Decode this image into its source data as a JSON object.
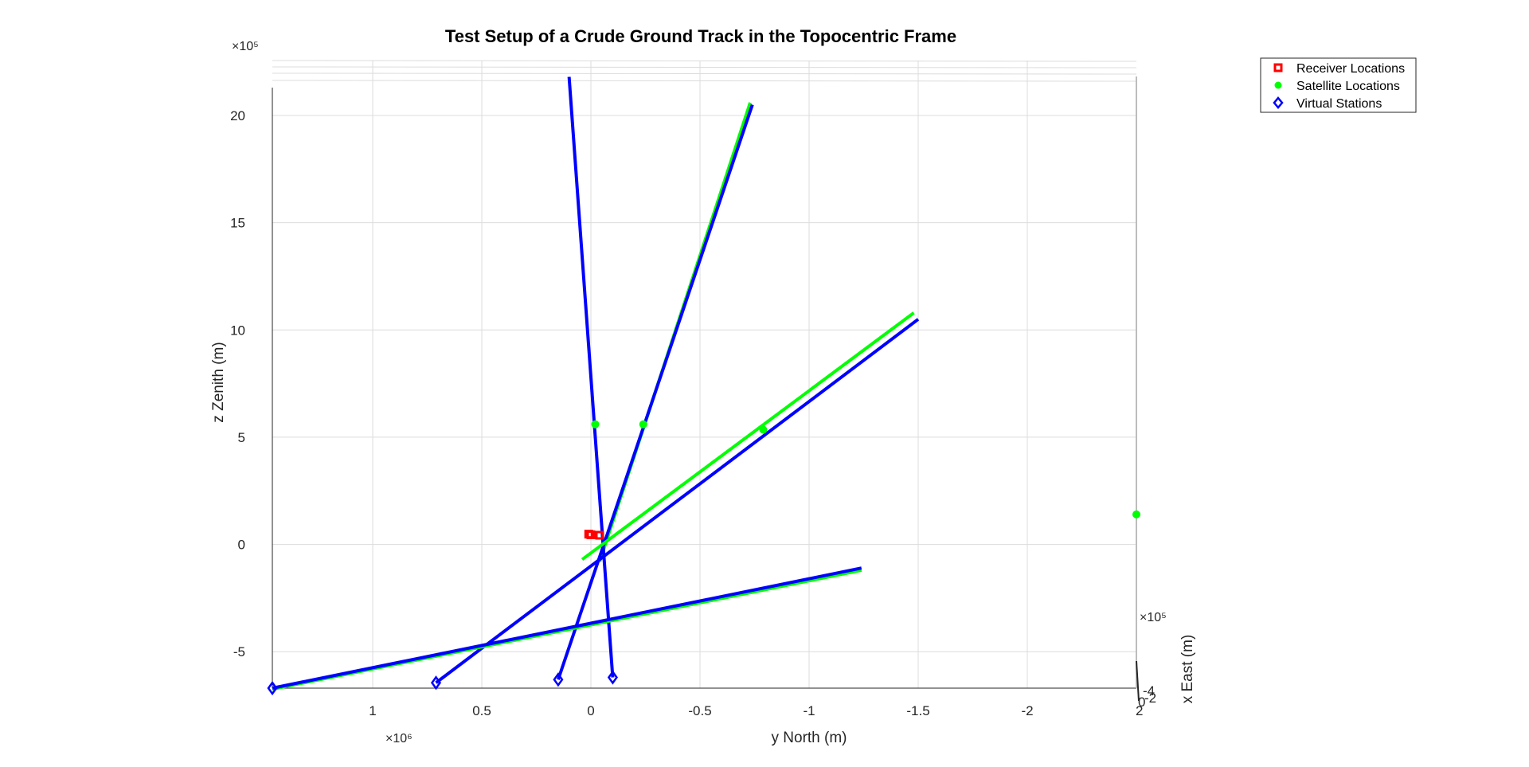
{
  "chart_data": {
    "type": "line",
    "title": "Test Setup of a Crude Ground Track in the Topocentric Frame",
    "xlabel": "x East (m)",
    "ylabel": "y North (m)",
    "zlabel": "z Zenith (m)",
    "view": "3d",
    "grid": true,
    "legend_position": "top-right",
    "x_exponent": "×10⁵",
    "y_exponent": "×10⁶",
    "z_exponent": "×10⁵",
    "x_ticks": [
      "-4",
      "-2",
      "0",
      "2"
    ],
    "y_ticks": [
      {
        "label": "1",
        "value": 1.0
      },
      {
        "label": "0.5",
        "value": 0.5
      },
      {
        "label": "0",
        "value": 0.0
      },
      {
        "label": "-0.5",
        "value": -0.5
      },
      {
        "label": "-1",
        "value": -1.0
      },
      {
        "label": "-1.5",
        "value": -1.5
      },
      {
        "label": "-2",
        "value": -2.0
      }
    ],
    "z_ticks": [
      {
        "label": "-5",
        "value": -5
      },
      {
        "label": "0",
        "value": 0
      },
      {
        "label": "5",
        "value": 5
      },
      {
        "label": "10",
        "value": 10
      },
      {
        "label": "15",
        "value": 15
      },
      {
        "label": "20",
        "value": 20
      }
    ],
    "ylim": [
      -2.5,
      1.46
    ],
    "zlim": [
      -6.7,
      21.3
    ],
    "colors": {
      "receiver": "#ff0000",
      "satellite": "#00ff00",
      "virtual": "#0000ff",
      "grid": "#dcdcdc",
      "axis": "#262626"
    },
    "legend": [
      {
        "label": "Receiver Locations",
        "marker": "square",
        "color": "#ff0000"
      },
      {
        "label": "Satellite Locations",
        "marker": "circle",
        "color": "#00ff00"
      },
      {
        "label": "Virtual Stations",
        "marker": "diamond",
        "color": "#0000ff"
      }
    ],
    "series": [
      {
        "name": "Receiver Locations",
        "marker": "square",
        "color": "#ff0000",
        "points": [
          {
            "y": 0.01,
            "z": 0.48
          },
          {
            "y": 0.0,
            "z": 0.45
          },
          {
            "y": -0.04,
            "z": 0.43
          }
        ]
      },
      {
        "name": "Satellite Locations",
        "marker": "circle",
        "color": "#00ff00",
        "points": [
          {
            "y": -0.02,
            "z": 5.6
          },
          {
            "y": -0.24,
            "z": 5.6
          },
          {
            "y": -0.79,
            "z": 5.35
          },
          {
            "y": -2.5,
            "z": 1.4
          }
        ]
      },
      {
        "name": "Virtual Stations",
        "marker": "diamond",
        "color": "#0000ff",
        "points": [
          {
            "y": 1.46,
            "z": -6.7
          },
          {
            "y": 0.71,
            "z": -6.45
          },
          {
            "y": 0.15,
            "z": -6.3
          },
          {
            "y": -0.1,
            "z": -6.2
          }
        ]
      }
    ],
    "ray_lines": [
      {
        "color": "#00ff00",
        "from": {
          "y": -0.04,
          "z": -0.8
        },
        "to": {
          "y": -0.73,
          "z": 20.6
        }
      },
      {
        "color": "#0000ff",
        "from": {
          "y": 0.15,
          "z": -6.3
        },
        "to": {
          "y": -0.74,
          "z": 20.5
        }
      },
      {
        "color": "#0000ff",
        "from": {
          "y": -0.1,
          "z": -6.2
        },
        "to": {
          "y": 0.1,
          "z": 21.8
        }
      },
      {
        "color": "#00ff00",
        "from": {
          "y": 0.04,
          "z": -0.7
        },
        "to": {
          "y": -1.48,
          "z": 10.8
        }
      },
      {
        "color": "#0000ff",
        "from": {
          "y": 0.71,
          "z": -6.45
        },
        "to": {
          "y": -1.5,
          "z": 10.5
        }
      },
      {
        "color": "#00ff00",
        "from": {
          "y": 1.46,
          "z": -6.75
        },
        "to": {
          "y": -1.24,
          "z": -1.2
        }
      },
      {
        "color": "#0000ff",
        "from": {
          "y": 1.46,
          "z": -6.7
        },
        "to": {
          "y": -1.24,
          "z": -1.1
        }
      }
    ]
  }
}
